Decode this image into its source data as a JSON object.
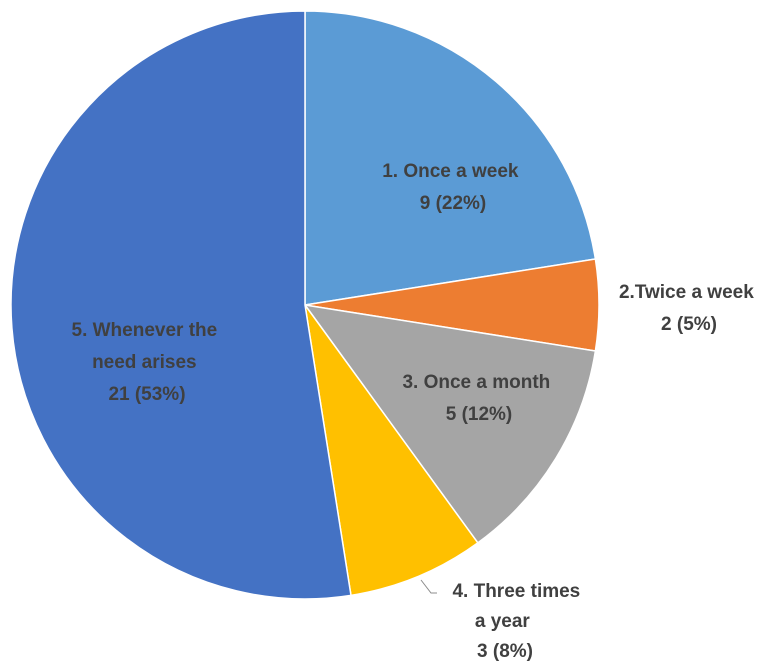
{
  "chart_data": {
    "type": "pie",
    "title": "",
    "slices": [
      {
        "category": "1. Once a week",
        "value": 9,
        "percent": "22%",
        "color": "#5B9BD5",
        "label_lines": [
          "1. Once a week",
          "9 (22%)"
        ]
      },
      {
        "category": "2.Twice a week",
        "value": 2,
        "percent": "5%",
        "color": "#ED7D31",
        "label_lines": [
          "2.Twice a week",
          "2 (5%)"
        ]
      },
      {
        "category": "3. Once a month",
        "value": 5,
        "percent": "12%",
        "color": "#A5A5A5",
        "label_lines": [
          "3. Once a month",
          "5 (12%)"
        ]
      },
      {
        "category": "4. Three times a year",
        "value": 3,
        "percent": "8%",
        "color": "#FFC000",
        "label_lines": [
          "4. Three times",
          "a year",
          "3 (8%)"
        ]
      },
      {
        "category": "5. Whenever the need arises",
        "value": 21,
        "percent": "53%",
        "color": "#4472C4",
        "label_lines": [
          "5. Whenever the",
          "need arises",
          "21 (53%)"
        ]
      }
    ],
    "start_angle": "12 o'clock",
    "direction": "clockwise",
    "legend": "none",
    "data_labels": true
  }
}
